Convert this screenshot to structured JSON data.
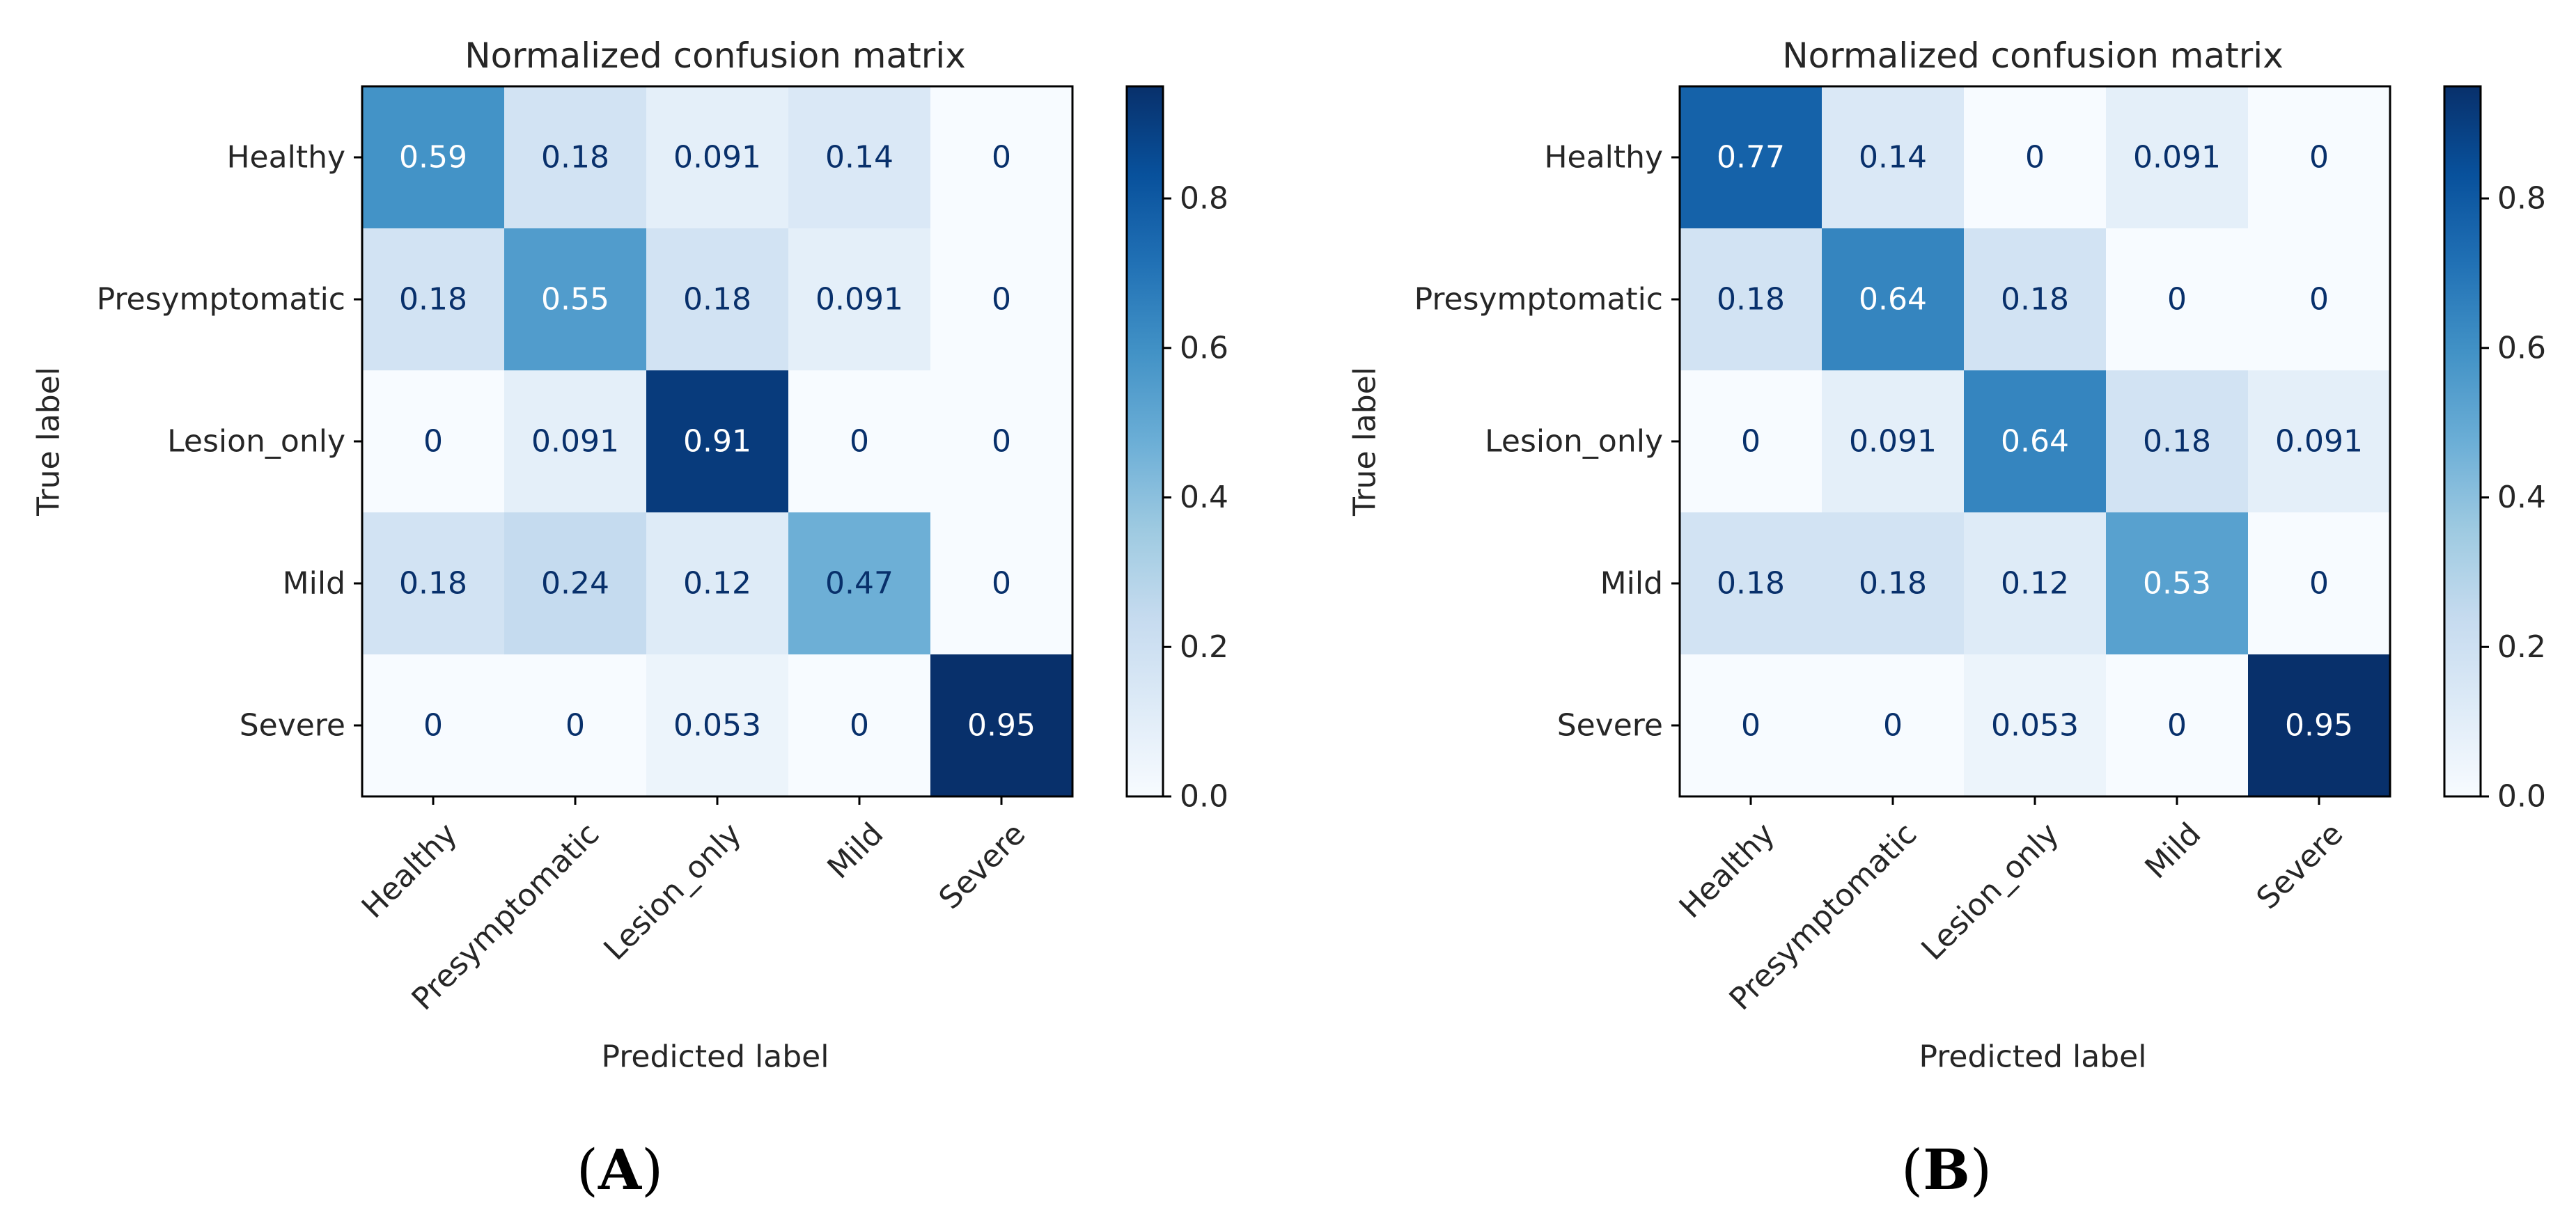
{
  "chart_data": [
    {
      "type": "heatmap",
      "panel_label": "A",
      "title": "Normalized confusion matrix",
      "xlabel": "Predicted label",
      "ylabel": "True label",
      "x_categories": [
        "Healthy",
        "Presymptomatic",
        "Lesion_only",
        "Mild",
        "Severe"
      ],
      "y_categories": [
        "Healthy",
        "Presymptomatic",
        "Lesion_only",
        "Mild",
        "Severe"
      ],
      "values": [
        [
          0.59,
          0.18,
          0.091,
          0.14,
          0
        ],
        [
          0.18,
          0.55,
          0.18,
          0.091,
          0
        ],
        [
          0,
          0.091,
          0.91,
          0,
          0
        ],
        [
          0.18,
          0.24,
          0.12,
          0.47,
          0
        ],
        [
          0,
          0,
          0.053,
          0,
          0.95
        ]
      ],
      "value_labels": [
        [
          "0.59",
          "0.18",
          "0.091",
          "0.14",
          "0"
        ],
        [
          "0.18",
          "0.55",
          "0.18",
          "0.091",
          "0"
        ],
        [
          "0",
          "0.091",
          "0.91",
          "0",
          "0"
        ],
        [
          "0.18",
          "0.24",
          "0.12",
          "0.47",
          "0"
        ],
        [
          "0",
          "0",
          "0.053",
          "0",
          "0.95"
        ]
      ],
      "colorbar": {
        "colormap": "Blues",
        "range": [
          0,
          0.95
        ],
        "ticks": [
          "0.0",
          "0.2",
          "0.4",
          "0.6",
          "0.8"
        ]
      }
    },
    {
      "type": "heatmap",
      "panel_label": "B",
      "title": "Normalized confusion matrix",
      "xlabel": "Predicted label",
      "ylabel": "True label",
      "x_categories": [
        "Healthy",
        "Presymptomatic",
        "Lesion_only",
        "Mild",
        "Severe"
      ],
      "y_categories": [
        "Healthy",
        "Presymptomatic",
        "Lesion_only",
        "Mild",
        "Severe"
      ],
      "values": [
        [
          0.77,
          0.14,
          0,
          0.091,
          0
        ],
        [
          0.18,
          0.64,
          0.18,
          0,
          0
        ],
        [
          0,
          0.091,
          0.64,
          0.18,
          0.091
        ],
        [
          0.18,
          0.18,
          0.12,
          0.53,
          0
        ],
        [
          0,
          0,
          0.053,
          0,
          0.95
        ]
      ],
      "value_labels": [
        [
          "0.77",
          "0.14",
          "0",
          "0.091",
          "0"
        ],
        [
          "0.18",
          "0.64",
          "0.18",
          "0",
          "0"
        ],
        [
          "0",
          "0.091",
          "0.64",
          "0.18",
          "0.091"
        ],
        [
          "0.18",
          "0.18",
          "0.12",
          "0.53",
          "0"
        ],
        [
          "0",
          "0",
          "0.053",
          "0",
          "0.95"
        ]
      ],
      "colorbar": {
        "colormap": "Blues",
        "range": [
          0,
          0.95
        ],
        "ticks": [
          "0.0",
          "0.2",
          "0.4",
          "0.6",
          "0.8"
        ]
      }
    }
  ],
  "captions": {
    "left_letter": "A",
    "right_letter": "B",
    "open_paren": "(",
    "close_paren": ")"
  }
}
